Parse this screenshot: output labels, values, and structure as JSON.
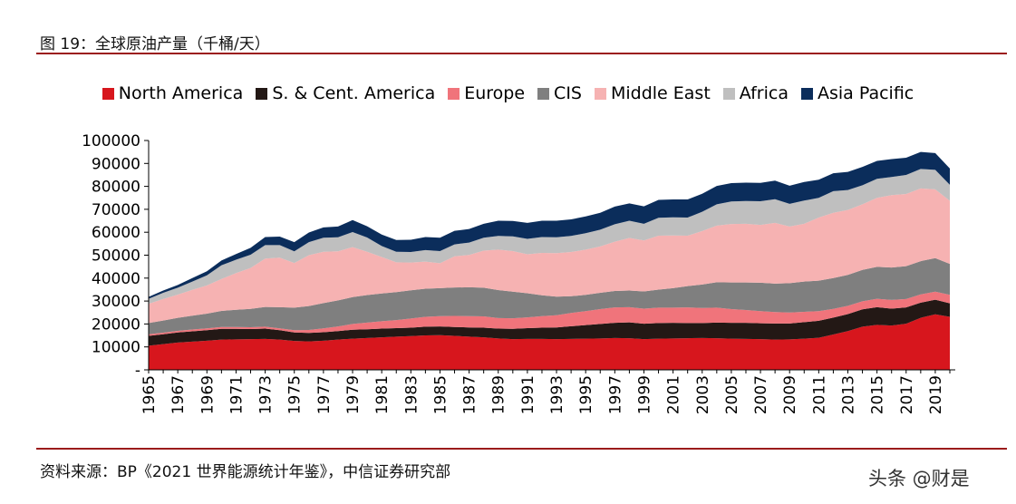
{
  "header": {
    "title": "图 19：全球原油产量（千桶/天）"
  },
  "footer": {
    "source": "资料来源：BP《2021 世界能源统计年鉴》，中信证券研究部",
    "watermark": "头条 @财是"
  },
  "chart_data": {
    "type": "area",
    "stacked": true,
    "title": "图 19：全球原油产量（千桶/天）",
    "xlabel": "",
    "ylabel": "",
    "ylim": [
      0,
      100000
    ],
    "yticks": [
      0,
      10000,
      20000,
      30000,
      40000,
      50000,
      60000,
      70000,
      80000,
      90000,
      100000
    ],
    "ytick_labels": [
      "-",
      "10000",
      "20000",
      "30000",
      "40000",
      "50000",
      "60000",
      "70000",
      "80000",
      "90000",
      "100000"
    ],
    "xtick_labels": [
      "1965",
      "1967",
      "1969",
      "1971",
      "1973",
      "1975",
      "1977",
      "1979",
      "1981",
      "1983",
      "1985",
      "1987",
      "1989",
      "1991",
      "1993",
      "1995",
      "1997",
      "1999",
      "2001",
      "2003",
      "2005",
      "2007",
      "2009",
      "2011",
      "2013",
      "2015",
      "2017",
      "2019"
    ],
    "grid": false,
    "legend_position": "top",
    "x": [
      1965,
      1966,
      1967,
      1968,
      1969,
      1970,
      1971,
      1972,
      1973,
      1974,
      1975,
      1976,
      1977,
      1978,
      1979,
      1980,
      1981,
      1982,
      1983,
      1984,
      1985,
      1986,
      1987,
      1988,
      1989,
      1990,
      1991,
      1992,
      1993,
      1994,
      1995,
      1996,
      1997,
      1998,
      1999,
      2000,
      2001,
      2002,
      2003,
      2004,
      2005,
      2006,
      2007,
      2008,
      2009,
      2010,
      2011,
      2012,
      2013,
      2014,
      2015,
      2016,
      2017,
      2018,
      2019,
      2020
    ],
    "series": [
      {
        "name": "North America",
        "color": "#d7161d",
        "values": [
          10500,
          11200,
          11900,
          12300,
          12700,
          13200,
          13300,
          13400,
          13500,
          13200,
          12600,
          12400,
          12700,
          13200,
          13600,
          13900,
          14200,
          14500,
          14700,
          15000,
          15100,
          14800,
          14500,
          14200,
          13700,
          13400,
          13500,
          13500,
          13400,
          13500,
          13600,
          13700,
          13900,
          13800,
          13400,
          13600,
          13700,
          13800,
          13900,
          13800,
          13600,
          13500,
          13400,
          13200,
          13300,
          13600,
          14000,
          15400,
          16900,
          18800,
          19600,
          19300,
          20100,
          22700,
          24200,
          23100
        ]
      },
      {
        "name": "S. & Cent. America",
        "color": "#231815",
        "values": [
          4300,
          4300,
          4400,
          4500,
          4600,
          4700,
          4600,
          4400,
          4500,
          4100,
          3700,
          3700,
          3700,
          3700,
          3900,
          3800,
          3800,
          3700,
          3700,
          3800,
          3800,
          3900,
          4000,
          4200,
          4300,
          4500,
          4700,
          4900,
          5100,
          5500,
          5900,
          6300,
          6600,
          6900,
          6700,
          6800,
          6800,
          6600,
          6500,
          6800,
          6900,
          7000,
          6900,
          7000,
          6900,
          7200,
          7400,
          7400,
          7400,
          7600,
          7700,
          7400,
          7100,
          6600,
          6400,
          5900
        ]
      },
      {
        "name": "Europe",
        "color": "#f0747b",
        "values": [
          700,
          700,
          700,
          800,
          800,
          800,
          800,
          800,
          800,
          800,
          1000,
          1300,
          1700,
          2000,
          2500,
          2900,
          3200,
          3500,
          4000,
          4300,
          4500,
          4800,
          4900,
          4900,
          4600,
          4600,
          4700,
          5000,
          5300,
          5800,
          6100,
          6500,
          6700,
          6600,
          6600,
          6700,
          6600,
          6800,
          6600,
          6500,
          6000,
          5600,
          5300,
          5000,
          4800,
          4500,
          4200,
          3800,
          3600,
          3500,
          3700,
          3800,
          3700,
          3600,
          3500,
          3700
        ]
      },
      {
        "name": "CIS",
        "color": "#7f7f7f",
        "values": [
          4900,
          5300,
          5700,
          6000,
          6400,
          7000,
          7500,
          8000,
          8600,
          9200,
          9800,
          10400,
          11000,
          11400,
          11700,
          12000,
          12100,
          12200,
          12300,
          12300,
          12200,
          12400,
          12600,
          12500,
          12200,
          11600,
          10500,
          9100,
          8100,
          7300,
          7100,
          7100,
          7200,
          7300,
          7500,
          7900,
          8500,
          9300,
          10200,
          11100,
          11600,
          12000,
          12400,
          12400,
          12800,
          13200,
          13300,
          13400,
          13500,
          13700,
          13900,
          14100,
          14300,
          14500,
          14600,
          13500
        ]
      },
      {
        "name": "Middle East",
        "color": "#f6b2b2",
        "values": [
          8400,
          9400,
          10100,
          11300,
          12300,
          13900,
          16000,
          17800,
          21100,
          21600,
          19500,
          22200,
          22400,
          21400,
          21800,
          18900,
          15900,
          13000,
          12100,
          11800,
          10900,
          13600,
          14100,
          16200,
          17600,
          17700,
          17000,
          18500,
          19000,
          19300,
          19700,
          20200,
          21500,
          22900,
          22200,
          23500,
          23000,
          22000,
          23300,
          24700,
          25500,
          25600,
          25200,
          26500,
          24700,
          25200,
          27500,
          28500,
          28300,
          28600,
          30100,
          31600,
          31500,
          31700,
          30000,
          27500
        ]
      },
      {
        "name": "Africa",
        "color": "#bfbfbf",
        "values": [
          2200,
          2700,
          3000,
          3600,
          4400,
          6000,
          5800,
          5800,
          5900,
          5500,
          5100,
          5700,
          6100,
          6100,
          6600,
          6200,
          4800,
          4600,
          4600,
          5000,
          5300,
          5200,
          5400,
          5600,
          6000,
          6400,
          6700,
          6900,
          6900,
          7000,
          7200,
          7300,
          7600,
          7500,
          7300,
          7800,
          7900,
          7900,
          8400,
          9300,
          9800,
          9900,
          10300,
          10300,
          9900,
          10100,
          8600,
          9400,
          8700,
          8300,
          8300,
          7900,
          8300,
          8500,
          8500,
          7000
        ]
      },
      {
        "name": "Asia Pacific",
        "color": "#0b2d5b",
        "values": [
          800,
          1000,
          1200,
          1500,
          1800,
          2100,
          2500,
          3000,
          3500,
          3700,
          4000,
          4200,
          4500,
          4700,
          5200,
          4900,
          5000,
          5100,
          5300,
          5700,
          5800,
          5900,
          5900,
          6100,
          6600,
          6700,
          7000,
          7100,
          7200,
          7200,
          7300,
          7400,
          7700,
          7600,
          7600,
          7800,
          7800,
          7900,
          7900,
          8000,
          8000,
          8000,
          8000,
          8100,
          7900,
          8100,
          7900,
          7800,
          7900,
          8000,
          7800,
          7800,
          7500,
          7400,
          7300,
          7100
        ]
      }
    ]
  }
}
